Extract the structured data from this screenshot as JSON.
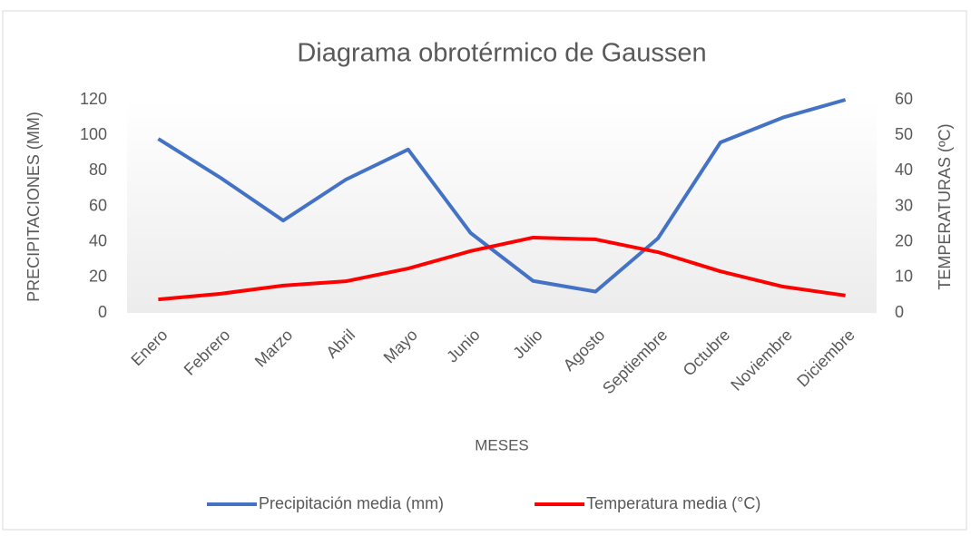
{
  "chart_data": {
    "type": "line",
    "title": "Diagrama obrotérmico de Gaussen",
    "x_label": "MESES",
    "y_label": "PRECIPITACIONES (MM)",
    "y2_label": "TEMPERATURAS (ºC)",
    "categories": [
      "Enero",
      "Febrero",
      "Marzo",
      "Abril",
      "Mayo",
      "Junio",
      "Julio",
      "Agosto",
      "Septiembre",
      "Octubre",
      "Noviembre",
      "Diciembre"
    ],
    "series": [
      {
        "name": "Precipitación media (mm)",
        "color": "#4472c4",
        "values": [
          98,
          76,
          52,
          75,
          92,
          45,
          18,
          12,
          42,
          96,
          110,
          120
        ]
      },
      {
        "name": "Temperatura media (°C)",
        "color": "#ff0000",
        "axis": "y2",
        "values": [
          3.8,
          5.4,
          7.7,
          8.9,
          12.5,
          17.4,
          21.2,
          20.7,
          17.1,
          11.7,
          7.4,
          4.9
        ]
      }
    ],
    "ylim": [
      0,
      120
    ],
    "yticks": [
      0,
      20,
      40,
      60,
      80,
      100,
      120
    ],
    "y2lim": [
      0,
      60
    ],
    "y2ticks": [
      0,
      10,
      20,
      30,
      40,
      50,
      60
    ],
    "legend": "bottom"
  }
}
